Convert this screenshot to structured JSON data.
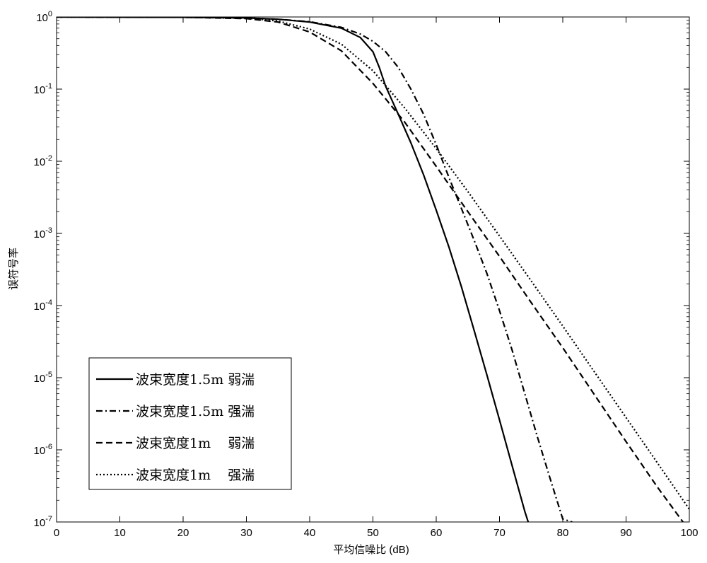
{
  "chart_data": {
    "type": "line",
    "title": "",
    "xlabel": "平均信噪比 (dB)",
    "ylabel": "误符号率",
    "xlim": [
      0,
      100
    ],
    "ylim": [
      1e-07,
      1
    ],
    "yscale": "log",
    "grid": false,
    "legend_position": "bottom-left",
    "x_ticks": [
      "0",
      "10",
      "20",
      "30",
      "40",
      "50",
      "60",
      "70",
      "80",
      "90",
      "100"
    ],
    "y_ticks": [
      {
        "base": "10",
        "exp": "0"
      },
      {
        "base": "10",
        "exp": "-1"
      },
      {
        "base": "10",
        "exp": "-2"
      },
      {
        "base": "10",
        "exp": "-3"
      },
      {
        "base": "10",
        "exp": "-4"
      },
      {
        "base": "10",
        "exp": "-5"
      },
      {
        "base": "10",
        "exp": "-6"
      },
      {
        "base": "10",
        "exp": "-7"
      }
    ],
    "series": [
      {
        "name": "波束宽度1.5m 弱湍",
        "style": "solid",
        "color": "#000000",
        "x": [
          0,
          20,
          30,
          35,
          40,
          45,
          48,
          50,
          51,
          52,
          54,
          56,
          58,
          60,
          62,
          64,
          66,
          68,
          70,
          72,
          74,
          76,
          77.5
        ],
        "y": [
          1,
          0.99,
          0.97,
          0.93,
          0.85,
          0.7,
          0.52,
          0.33,
          0.2,
          0.11,
          0.045,
          0.018,
          0.0065,
          0.0021,
          0.00065,
          0.00018,
          4.5e-05,
          1.1e-05,
          2.6e-06,
          6e-07,
          1.4e-07,
          4e-08,
          1e-07
        ]
      },
      {
        "name": "波束宽度1.5m 强湍",
        "style": "dashdot",
        "color": "#000000",
        "x": [
          0,
          20,
          30,
          35,
          40,
          45,
          48,
          50,
          52,
          54,
          56,
          58,
          60,
          62,
          64,
          66,
          68,
          70,
          72,
          74,
          76,
          78,
          80,
          81.5
        ],
        "y": [
          1,
          0.99,
          0.97,
          0.93,
          0.86,
          0.72,
          0.58,
          0.46,
          0.33,
          0.2,
          0.1,
          0.045,
          0.017,
          0.006,
          0.0022,
          0.0008,
          0.00028,
          8.5e-05,
          2.4e-05,
          6e-06,
          1.5e-06,
          4e-07,
          1.1e-07,
          1e-07
        ]
      },
      {
        "name": "波束宽度1m    弱湍",
        "style": "dashed",
        "color": "#000000",
        "x": [
          0,
          20,
          30,
          35,
          40,
          45,
          50,
          55,
          60,
          65,
          70,
          75,
          80,
          85,
          90,
          95,
          99
        ],
        "y": [
          1,
          0.99,
          0.95,
          0.85,
          0.62,
          0.34,
          0.12,
          0.035,
          0.0085,
          0.002,
          0.00048,
          0.00011,
          2.6e-05,
          5.8e-06,
          1.3e-06,
          3e-07,
          1e-07
        ]
      },
      {
        "name": "波束宽度1m    强湍",
        "style": "dotted",
        "color": "#000000",
        "x": [
          0,
          20,
          30,
          35,
          40,
          45,
          50,
          55,
          60,
          65,
          70,
          75,
          80,
          85,
          90,
          95,
          100
        ],
        "y": [
          1,
          0.99,
          0.96,
          0.88,
          0.68,
          0.42,
          0.18,
          0.055,
          0.015,
          0.0038,
          0.00092,
          0.00022,
          5.2e-05,
          1.2e-05,
          2.8e-06,
          6.5e-07,
          1.5e-07
        ]
      }
    ]
  }
}
